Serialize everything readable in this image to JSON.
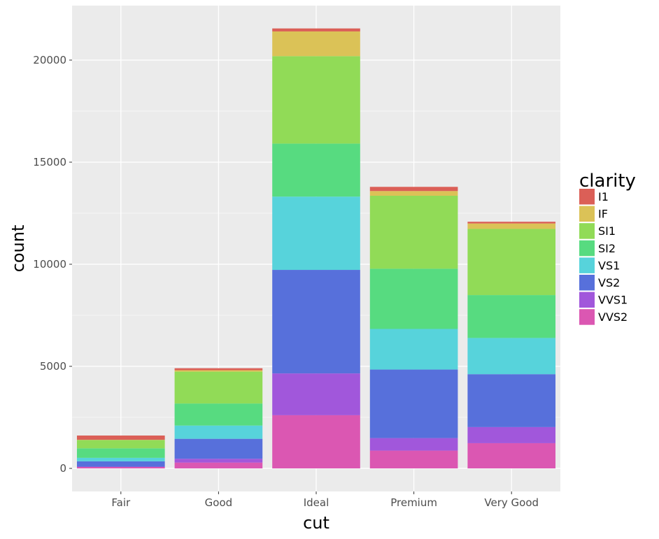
{
  "chart_data": {
    "type": "bar",
    "stacked": true,
    "title": "",
    "xlabel": "cut",
    "ylabel": "count",
    "categories": [
      "Fair",
      "Good",
      "Ideal",
      "Premium",
      "Very Good"
    ],
    "ylim": [
      -1130,
      22670
    ],
    "yticks": [
      0,
      5000,
      10000,
      15000,
      20000
    ],
    "ytick_labels": [
      "0",
      "5000",
      "10000",
      "15000",
      "20000"
    ],
    "grid": true,
    "legend": {
      "title": "clarity",
      "position": "right"
    },
    "series": [
      {
        "name": "I1",
        "color": "#db5f57",
        "values": [
          210,
          96,
          146,
          205,
          84
        ]
      },
      {
        "name": "IF",
        "color": "#dbc257",
        "values": [
          9,
          71,
          1212,
          230,
          268
        ]
      },
      {
        "name": "SI1",
        "color": "#91db57",
        "values": [
          408,
          1560,
          4282,
          3575,
          3240
        ]
      },
      {
        "name": "SI2",
        "color": "#57db80",
        "values": [
          466,
          1081,
          2598,
          2949,
          2100
        ]
      },
      {
        "name": "VS1",
        "color": "#57d3db",
        "values": [
          170,
          648,
          3589,
          1989,
          1775
        ]
      },
      {
        "name": "VS2",
        "color": "#5770db",
        "values": [
          261,
          978,
          5071,
          3357,
          2591
        ]
      },
      {
        "name": "VVS1",
        "color": "#a157db",
        "values": [
          17,
          186,
          2047,
          616,
          789
        ]
      },
      {
        "name": "VVS2",
        "color": "#db57b2",
        "values": [
          69,
          286,
          2606,
          870,
          1235
        ]
      }
    ]
  }
}
